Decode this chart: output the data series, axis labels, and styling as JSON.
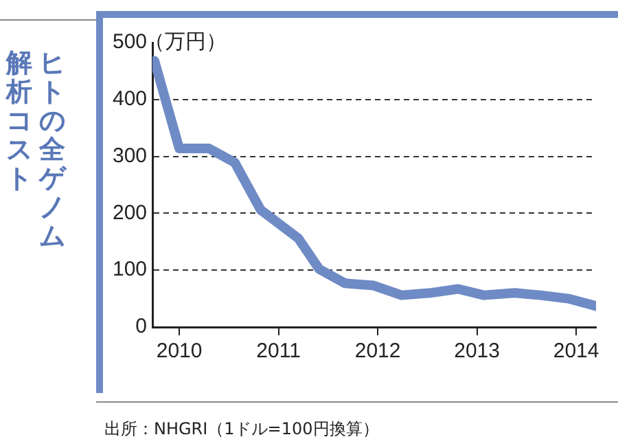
{
  "chart_data": {
    "type": "line",
    "title": "ヒトの全ゲノム",
    "subtitle": "解析コスト",
    "ylabel": "（万円）",
    "x": [
      2009.75,
      2010.0,
      2010.3,
      2010.56,
      2010.82,
      2011.2,
      2011.41,
      2011.67,
      2011.96,
      2012.24,
      2012.53,
      2012.81,
      2013.07,
      2013.38,
      2013.64,
      2013.92,
      2014.2
    ],
    "series": [
      {
        "color": "#6f8bc6",
        "values": [
          468,
          314,
          314,
          289,
          206,
          156,
          102,
          77,
          73,
          56,
          60,
          67,
          56,
          60,
          56,
          50,
          37
        ]
      }
    ],
    "xlim": [
      2009.73,
      2014.2
    ],
    "xticks": [
      2010,
      2011,
      2012,
      2013,
      2014
    ],
    "ylim": [
      0,
      500
    ],
    "yticks": [
      0,
      100,
      200,
      300,
      400,
      500
    ],
    "grid": "y",
    "legend": false,
    "marker": "none",
    "line_style": "solid",
    "annotations": [
      "出所：NHGRI（1ドル=100円換算）"
    ]
  }
}
